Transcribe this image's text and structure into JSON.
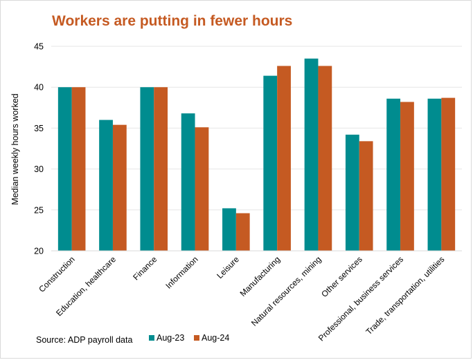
{
  "chart_data": {
    "type": "bar",
    "title": "Workers are putting in fewer hours",
    "xlabel": "",
    "ylabel": "Median weekly hours worked",
    "ylim": [
      20,
      45
    ],
    "yticks": [
      "20",
      "25",
      "30",
      "35",
      "40",
      "45"
    ],
    "grid": true,
    "legend_position": "bottom",
    "categories": [
      "Construction",
      "Education, healthcare",
      "Finance",
      "Information",
      "Leisure",
      "Manufacturing",
      "Natural resources, mining",
      "Other services",
      "Professional, business services",
      "Trade, transportation, utilities"
    ],
    "series": [
      {
        "name": "Aug-23",
        "color": "#008c8f",
        "values": [
          40.0,
          36.0,
          40.0,
          36.8,
          25.2,
          41.4,
          43.5,
          34.2,
          38.6,
          38.6
        ]
      },
      {
        "name": "Aug-24",
        "color": "#c55a22",
        "values": [
          40.0,
          35.4,
          40.0,
          35.1,
          24.6,
          42.6,
          42.6,
          33.4,
          38.2,
          38.7
        ]
      }
    ],
    "source": "Source: ADP payroll  data"
  }
}
